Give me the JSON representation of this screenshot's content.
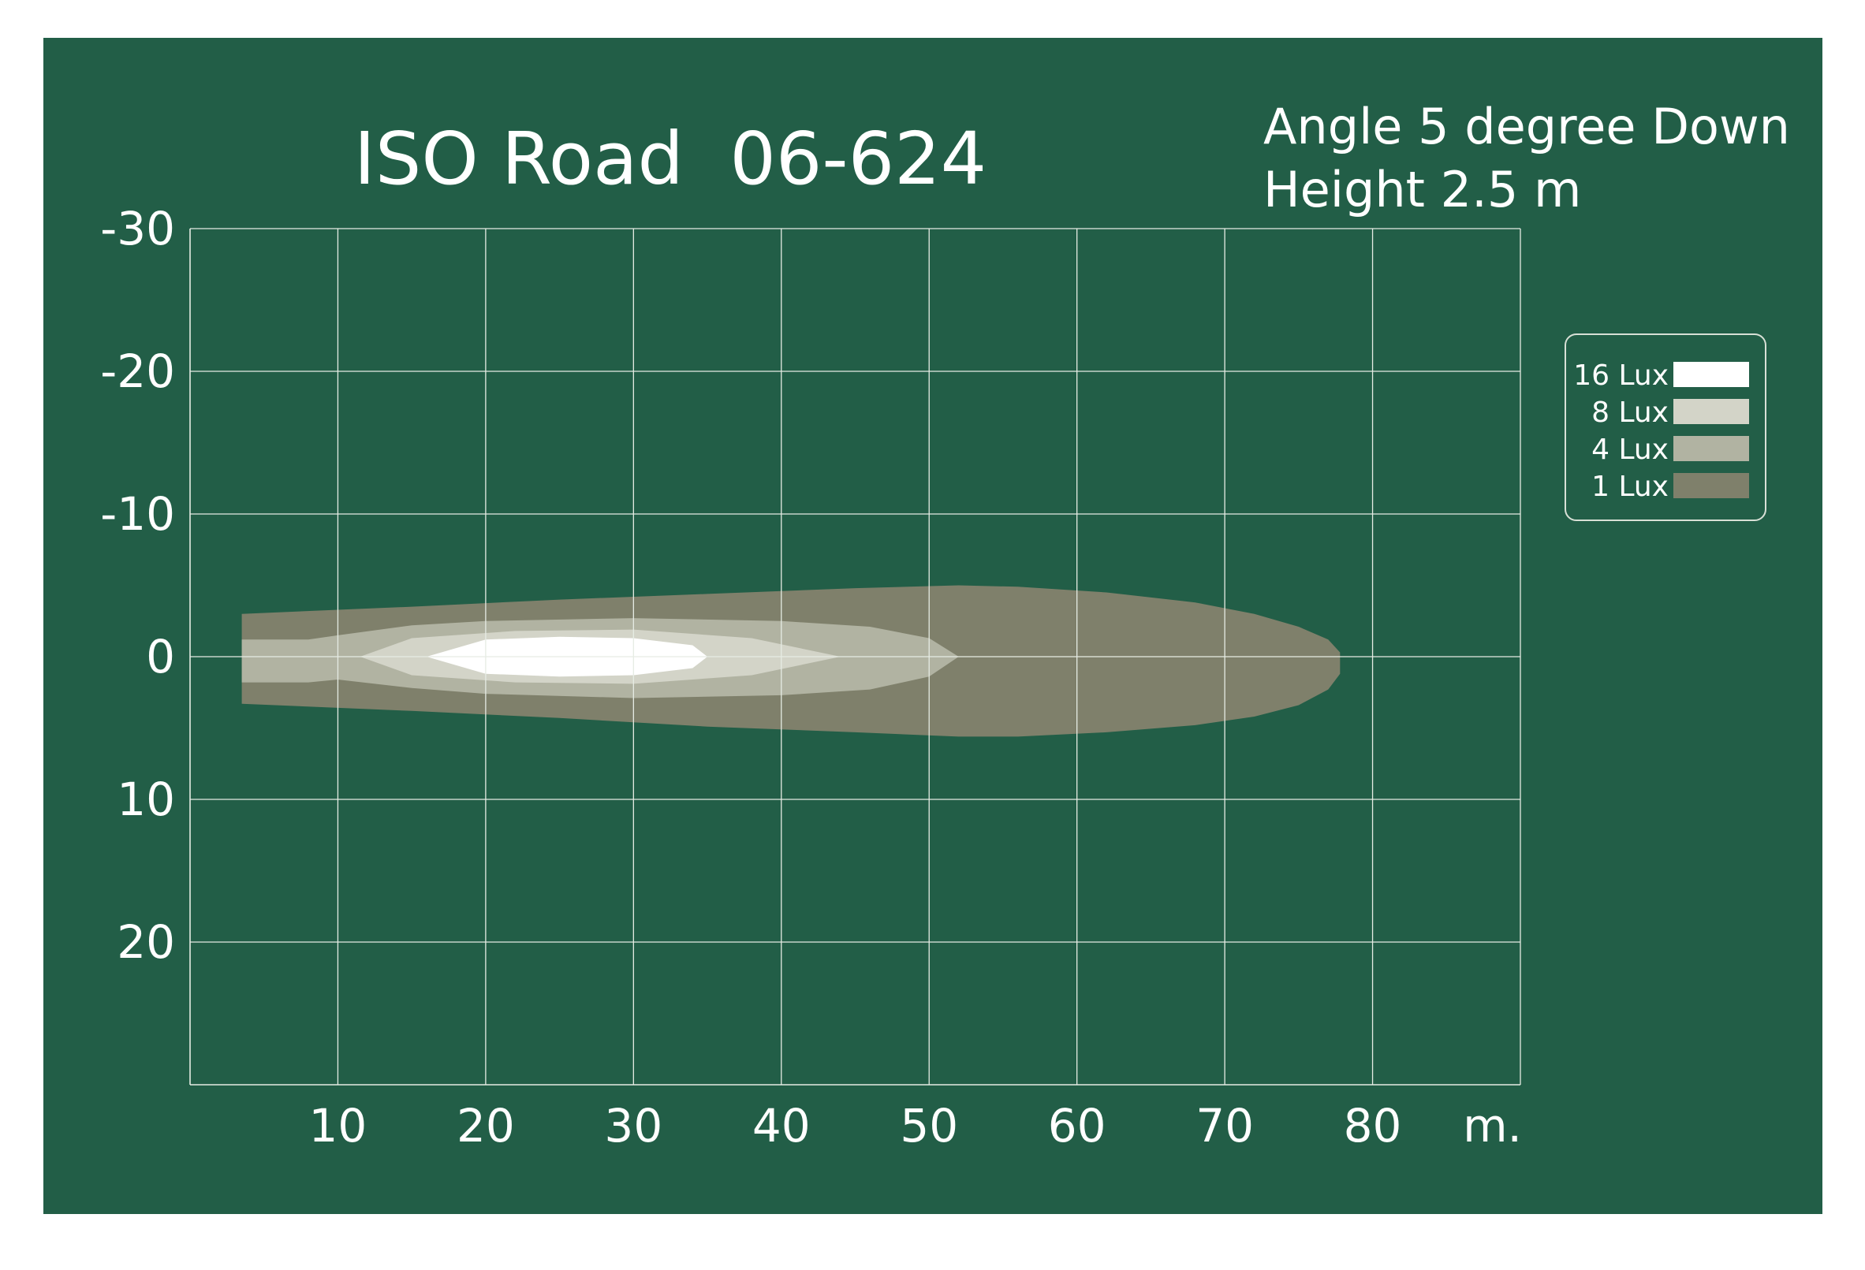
{
  "chart_data": {
    "type": "area",
    "title": "ISO Road  06-624",
    "annotation": [
      "Angle 5 degree Down",
      "Height 2.5 m"
    ],
    "x_unit_label": "m.",
    "xlim": [
      0,
      90
    ],
    "ylim": [
      -30,
      30
    ],
    "x_ticks": [
      10,
      20,
      30,
      40,
      50,
      60,
      70,
      80
    ],
    "y_ticks": [
      -30,
      -20,
      -10,
      0,
      10,
      20
    ],
    "y_tick_labels": [
      "-30",
      "-20",
      "-10",
      "0",
      "10",
      "20"
    ],
    "grid": true,
    "legend_position": "right",
    "legend": [
      {
        "label": "16 Lux",
        "color": "#ffffff"
      },
      {
        "label": "8 Lux",
        "color": "#d3d4c8"
      },
      {
        "label": "4 Lux",
        "color": "#b1b3a2"
      },
      {
        "label": "1 Lux",
        "color": "#7f806b"
      }
    ],
    "isolux_contours": [
      {
        "name": "1 Lux",
        "color": "#7f806b",
        "x": [
          3.5,
          15,
          25,
          35,
          45,
          52,
          56,
          62,
          68,
          72,
          75,
          77,
          77.8,
          77.8,
          77,
          75,
          72,
          68,
          62,
          56,
          52,
          45,
          35,
          25,
          15,
          3.5
        ],
        "y_upper": [
          -3,
          -3.5,
          -4,
          -4.4,
          -4.8,
          -5,
          -4.9,
          -4.5,
          -3.8,
          -3,
          -2.1,
          -1.2,
          -0.3,
          0,
          0,
          0,
          0,
          0,
          0,
          0,
          0,
          0,
          0,
          0,
          0,
          0
        ],
        "y_lower": [
          3.3,
          3.8,
          4.3,
          4.9,
          5.3,
          5.6,
          5.6,
          5.3,
          4.8,
          4.2,
          3.4,
          2.3,
          1.2,
          0,
          0,
          0,
          0,
          0,
          0,
          0,
          0,
          0,
          0,
          0,
          0,
          0
        ]
      },
      {
        "name": "4 Lux",
        "color": "#b1b3a2",
        "x": [
          3.5,
          8,
          10,
          15,
          20,
          30,
          40,
          46,
          50,
          52
        ],
        "y_upper": [
          -1.2,
          -1.2,
          -1.5,
          -2.2,
          -2.5,
          -2.7,
          -2.5,
          -2.1,
          -1.3,
          0
        ],
        "y_lower": [
          1.8,
          1.8,
          1.6,
          2.2,
          2.6,
          2.9,
          2.7,
          2.3,
          1.4,
          0
        ]
      },
      {
        "name": "8 Lux",
        "color": "#d3d4c8",
        "x": [
          11.5,
          15,
          22,
          30,
          38,
          44
        ],
        "y_upper": [
          0,
          -1.3,
          -1.8,
          -1.9,
          -1.3,
          0
        ],
        "y_lower": [
          0,
          1.3,
          1.8,
          1.9,
          1.3,
          0
        ]
      },
      {
        "name": "16 Lux",
        "color": "#ffffff",
        "x": [
          16,
          20,
          25,
          30,
          34,
          35
        ],
        "y_upper": [
          0,
          -1.2,
          -1.4,
          -1.3,
          -0.8,
          0
        ],
        "y_lower": [
          0,
          1.2,
          1.4,
          1.3,
          0.8,
          0
        ]
      }
    ]
  }
}
